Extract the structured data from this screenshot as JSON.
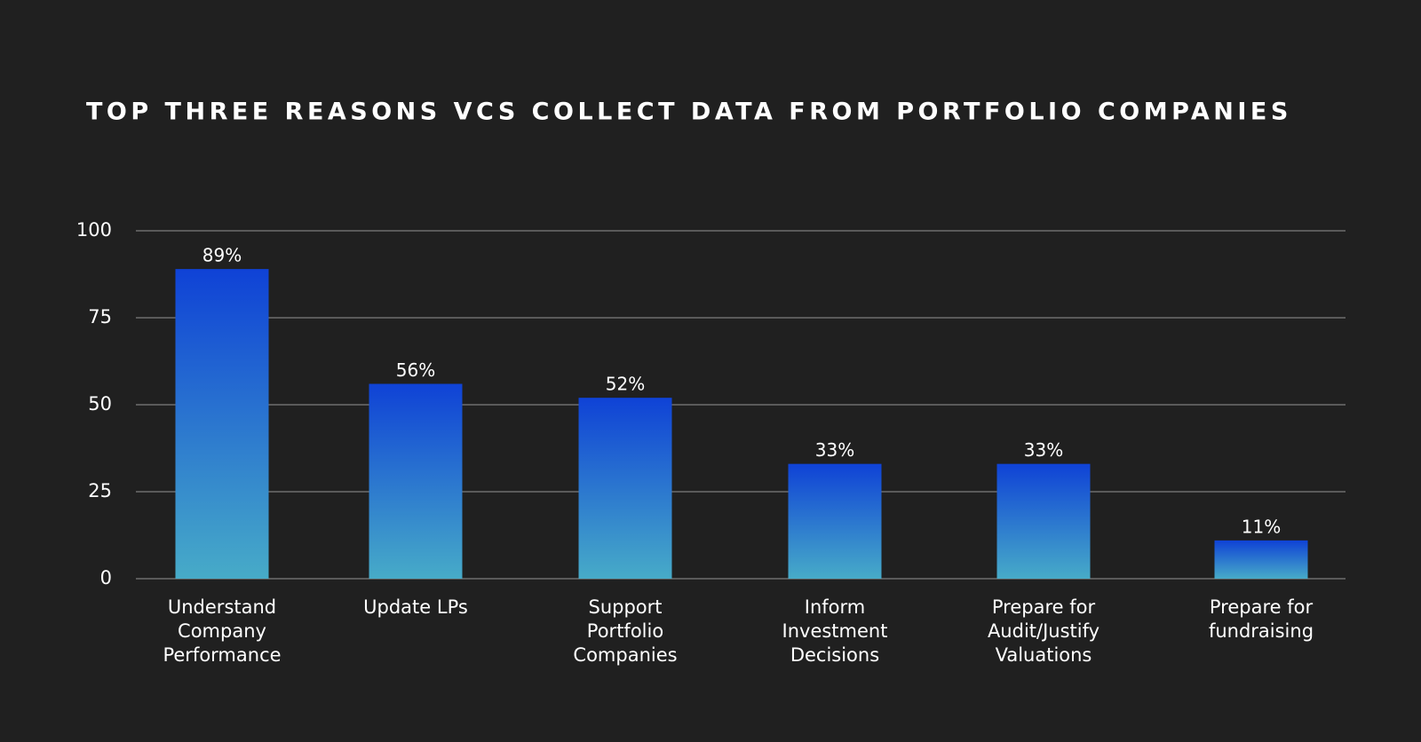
{
  "chart_data": {
    "type": "bar",
    "title": "TOP THREE REASONS VCS COLLECT DATA FROM PORTFOLIO COMPANIES",
    "categories": [
      "Understand Company Performance",
      "Update LPs",
      "Support Portfolio Companies",
      "Inform Investment Decisions",
      "Prepare for Audit/Justify Valuations",
      "Prepare for fundraising"
    ],
    "values": [
      89,
      56,
      52,
      33,
      33,
      11
    ],
    "value_labels": [
      "89%",
      "56%",
      "52%",
      "33%",
      "33%",
      "11%"
    ],
    "gradient": [
      "#0f42d6",
      "#47abc8"
    ],
    "ylim": [
      0,
      100
    ],
    "yticks": [
      0,
      25,
      50,
      75,
      100
    ],
    "grid": true
  }
}
